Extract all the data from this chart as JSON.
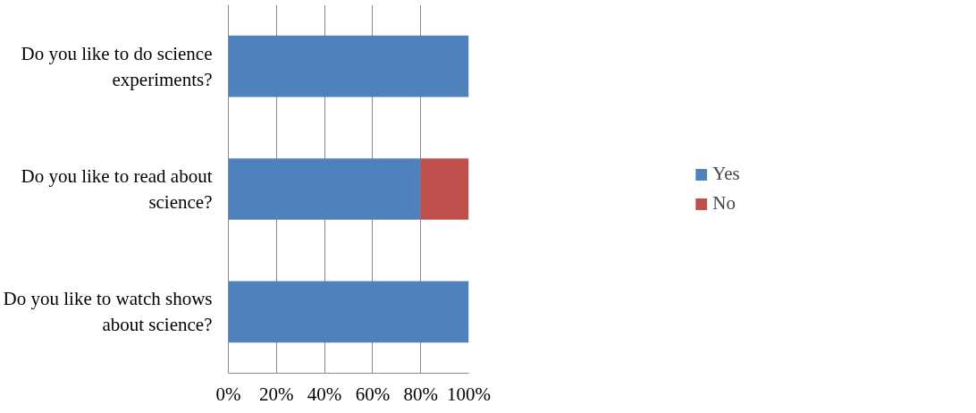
{
  "chart_data": {
    "type": "bar",
    "orientation": "horizontal",
    "stacked": true,
    "categories": [
      "Do you like to do science experiments?",
      "Do you like to read about science?",
      "Do you like to watch shows about science?"
    ],
    "series": [
      {
        "name": "Yes",
        "color": "#4f81bd",
        "values": [
          100,
          80,
          100
        ]
      },
      {
        "name": "No",
        "color": "#c0504d",
        "values": [
          0,
          20,
          0
        ]
      }
    ],
    "xlim": [
      0,
      100
    ],
    "xticks": [
      {
        "value": 0,
        "label": "0%"
      },
      {
        "value": 20,
        "label": "20%"
      },
      {
        "value": 40,
        "label": "40%"
      },
      {
        "value": 60,
        "label": "60%"
      },
      {
        "value": 80,
        "label": "80%"
      },
      {
        "value": 100,
        "label": "100%"
      }
    ],
    "grid": "x",
    "legend": "right"
  }
}
